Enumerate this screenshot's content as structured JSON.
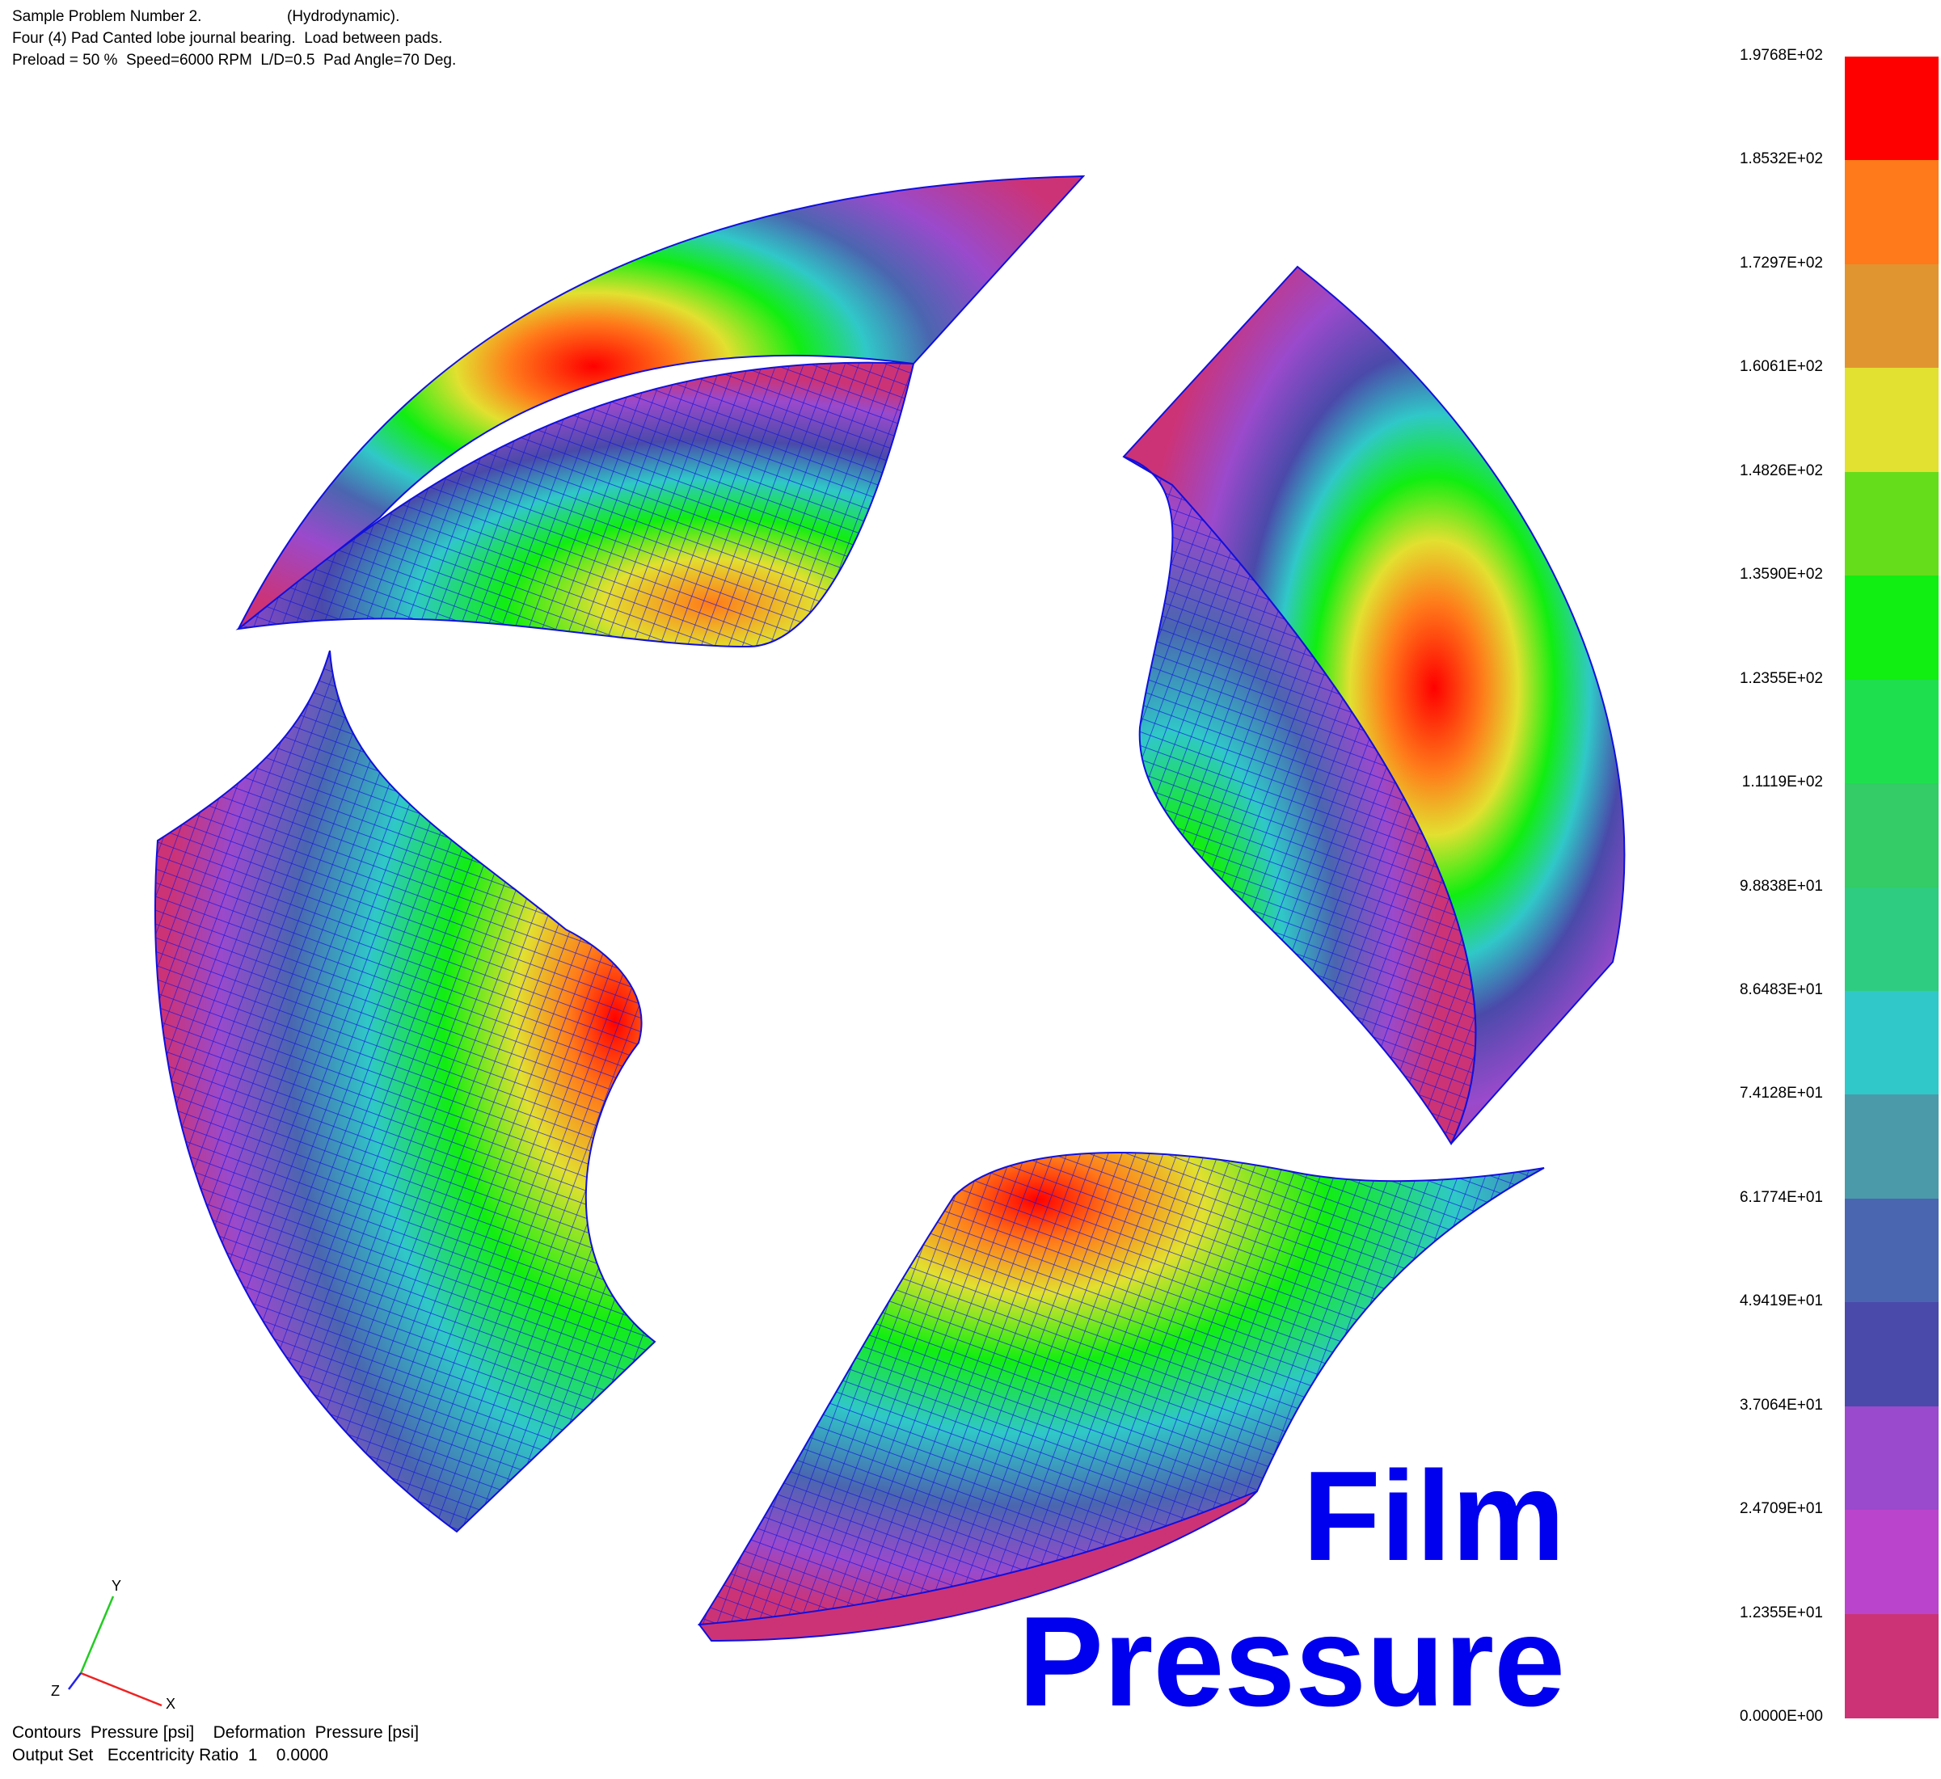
{
  "header": {
    "line1": "Sample Problem Number 2.                    (Hydrodynamic).",
    "line2": "Four (4) Pad Canted lobe journal bearing.  Load between pads.",
    "line3": "Preload = 50 %  Speed=6000 RPM  L/D=0.5  Pad Angle=70 Deg."
  },
  "footer": {
    "line1": "Contours  Pressure [psi]    Deformation  Pressure [psi]",
    "line2": "Output Set   Eccentricity Ratio  1    0.0000"
  },
  "overlay": {
    "title_line1": "Film",
    "title_line2": "Pressure",
    "title_color": "#0000ee"
  },
  "triad": {
    "x": "X",
    "y": "Y",
    "z": "Z"
  },
  "legend": {
    "labels": [
      "1.9768E+02",
      "1.8532E+02",
      "1.7297E+02",
      "1.6061E+02",
      "1.4826E+02",
      "1.3590E+02",
      "1.2355E+02",
      "1.1119E+02",
      "9.8838E+01",
      "8.6483E+01",
      "7.4128E+01",
      "6.1774E+01",
      "4.9419E+01",
      "3.7064E+01",
      "2.4709E+01",
      "1.2355E+01",
      "0.0000E+00"
    ],
    "colors": [
      "#ff0000",
      "#ff7a1a",
      "#e09530",
      "#e2e030",
      "#66dd1a",
      "#11ee11",
      "#1ee04e",
      "#33cc66",
      "#2ecc80",
      "#30c8c8",
      "#4a9aaa",
      "#4a66b0",
      "#4a4aaa",
      "#9a4acc",
      "#bb44cc",
      "#cc3377"
    ]
  },
  "pads": [
    {
      "name": "top",
      "peak_color": "#ff0000"
    },
    {
      "name": "right",
      "peak_color": "#ff0000"
    },
    {
      "name": "left",
      "peak_color": "#ff0000"
    },
    {
      "name": "bottom",
      "peak_color": "#dd2020"
    }
  ]
}
